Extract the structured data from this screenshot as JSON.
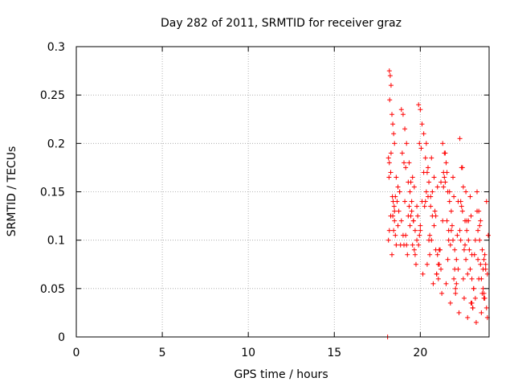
{
  "chart_data": {
    "type": "scatter",
    "title": "Day 282 of 2011, SRMTID for receiver graz",
    "xlabel": "GPS time / hours",
    "ylabel": "SRMTID / TECUs",
    "xlim": [
      0,
      24
    ],
    "ylim": [
      0,
      0.3
    ],
    "xticks": [
      0,
      5,
      10,
      15,
      20
    ],
    "xtick_labels": [
      "0",
      "5",
      "10",
      "15",
      "20"
    ],
    "yticks": [
      0,
      0.05,
      0.1,
      0.15,
      0.2,
      0.25,
      0.3
    ],
    "ytick_labels": [
      "0",
      "0.05",
      "0.1",
      "0.15",
      "0.2",
      "0.25",
      "0.3"
    ],
    "grid": true,
    "marker": "+",
    "series": [
      {
        "name": "SRMTID",
        "color": "#ff0000",
        "x": [
          18.1,
          18.2,
          18.25,
          18.3,
          18.22,
          18.35,
          18.4,
          18.45,
          18.5,
          18.3,
          18.2,
          18.28,
          18.6,
          18.7,
          18.8,
          18.55,
          18.65,
          18.75,
          18.4,
          18.5,
          18.9,
          19.0,
          19.1,
          19.2,
          18.95,
          19.05,
          19.15,
          19.3,
          19.4,
          19.5,
          19.35,
          19.45,
          19.6,
          19.7,
          19.8,
          19.55,
          19.65,
          19.9,
          20.0,
          20.1,
          20.2,
          19.95,
          20.05,
          20.3,
          20.4,
          20.5,
          20.35,
          20.45,
          20.6,
          20.7,
          20.8,
          20.55,
          20.65,
          20.9,
          21.0,
          21.1,
          21.2,
          20.95,
          21.05,
          21.3,
          21.4,
          21.5,
          21.35,
          21.45,
          21.6,
          21.7,
          21.8,
          21.55,
          21.65,
          21.9,
          22.0,
          22.1,
          22.2,
          21.95,
          22.05,
          22.3,
          22.4,
          22.5,
          22.35,
          22.45,
          22.6,
          22.7,
          22.8,
          22.55,
          22.65,
          22.9,
          23.0,
          23.1,
          23.2,
          22.95,
          23.05,
          23.3,
          23.4,
          23.5,
          23.35,
          23.45,
          23.6,
          23.7,
          23.8,
          23.55,
          23.65,
          23.75,
          23.85,
          18.15,
          18.45,
          18.85,
          19.25,
          19.75,
          20.15,
          20.75,
          21.25,
          21.75,
          22.25,
          22.75,
          23.25,
          23.7,
          18.35,
          18.6,
          19.0,
          19.4,
          19.85,
          20.25,
          20.6,
          21.0,
          21.4,
          21.85,
          22.15,
          22.6,
          23.0,
          23.5,
          23.9,
          18.5,
          19.1,
          19.6,
          20.0,
          20.5,
          21.1,
          21.6,
          22.0,
          22.5,
          23.1,
          23.6,
          18.7,
          19.3,
          19.8,
          20.3,
          20.85,
          21.3,
          21.8,
          22.35,
          22.85,
          23.35,
          23.8,
          18.2,
          18.9,
          19.5,
          20.1,
          20.7,
          21.2,
          21.7,
          22.2,
          22.7,
          23.2,
          23.75,
          18.55,
          19.2,
          19.7,
          20.4,
          20.95,
          21.5,
          22.05,
          22.55,
          23.05,
          23.55,
          18.8,
          19.45,
          20.2,
          20.8,
          21.35,
          21.95,
          22.4,
          22.95,
          23.45,
          23.95,
          19.15,
          19.9,
          20.55,
          21.15,
          21.65,
          22.3,
          22.8,
          23.3,
          23.85,
          18.18,
          18.42,
          19.35,
          20.35,
          21.45,
          22.45,
          23.15,
          18.28,
          19.55,
          20.65,
          21.55,
          22.65,
          23.65,
          18.38,
          19.65,
          20.45,
          21.9,
          22.9,
          23.4,
          18.15,
          19.05,
          20.0,
          21.05,
          22.1,
          23.0,
          23.9,
          18.48,
          19.95,
          20.9,
          21.75,
          22.75,
          23.7
        ],
        "y": [
          0.0,
          0.275,
          0.27,
          0.26,
          0.245,
          0.23,
          0.22,
          0.21,
          0.2,
          0.19,
          0.18,
          0.17,
          0.165,
          0.155,
          0.15,
          0.145,
          0.14,
          0.13,
          0.125,
          0.12,
          0.235,
          0.23,
          0.215,
          0.2,
          0.19,
          0.18,
          0.175,
          0.16,
          0.15,
          0.14,
          0.135,
          0.125,
          0.12,
          0.11,
          0.1,
          0.095,
          0.09,
          0.24,
          0.235,
          0.22,
          0.21,
          0.2,
          0.195,
          0.185,
          0.17,
          0.16,
          0.15,
          0.145,
          0.135,
          0.125,
          0.115,
          0.105,
          0.1,
          0.09,
          0.085,
          0.075,
          0.07,
          0.065,
          0.06,
          0.2,
          0.19,
          0.18,
          0.17,
          0.16,
          0.15,
          0.14,
          0.13,
          0.12,
          0.11,
          0.1,
          0.09,
          0.08,
          0.07,
          0.06,
          0.05,
          0.205,
          0.175,
          0.155,
          0.14,
          0.13,
          0.12,
          0.11,
          0.1,
          0.09,
          0.08,
          0.07,
          0.06,
          0.05,
          0.04,
          0.035,
          0.03,
          0.15,
          0.13,
          0.12,
          0.11,
          0.1,
          0.09,
          0.08,
          0.07,
          0.06,
          0.05,
          0.04,
          0.03,
          0.1,
          0.11,
          0.095,
          0.085,
          0.075,
          0.065,
          0.055,
          0.045,
          0.035,
          0.025,
          0.02,
          0.015,
          0.04,
          0.085,
          0.095,
          0.105,
          0.115,
          0.125,
          0.135,
          0.145,
          0.155,
          0.165,
          0.115,
          0.105,
          0.095,
          0.085,
          0.075,
          0.065,
          0.13,
          0.14,
          0.12,
          0.11,
          0.1,
          0.09,
          0.08,
          0.07,
          0.06,
          0.05,
          0.045,
          0.115,
          0.125,
          0.135,
          0.14,
          0.13,
          0.12,
          0.11,
          0.1,
          0.09,
          0.08,
          0.075,
          0.11,
          0.12,
          0.13,
          0.14,
          0.15,
          0.16,
          0.15,
          0.14,
          0.12,
          0.1,
          0.085,
          0.105,
          0.095,
          0.085,
          0.075,
          0.065,
          0.055,
          0.045,
          0.04,
          0.03,
          0.025,
          0.15,
          0.16,
          0.17,
          0.165,
          0.155,
          0.145,
          0.135,
          0.125,
          0.115,
          0.105,
          0.105,
          0.095,
          0.085,
          0.09,
          0.1,
          0.11,
          0.12,
          0.13,
          0.14,
          0.165,
          0.14,
          0.18,
          0.2,
          0.19,
          0.175,
          0.085,
          0.125,
          0.165,
          0.185,
          0.17,
          0.15,
          0.07,
          0.145,
          0.155,
          0.175,
          0.165,
          0.145,
          0.06,
          0.185,
          0.095,
          0.115,
          0.075,
          0.055,
          0.035,
          0.02,
          0.135,
          0.105,
          0.125,
          0.095,
          0.065,
          0.045
        ]
      }
    ]
  }
}
